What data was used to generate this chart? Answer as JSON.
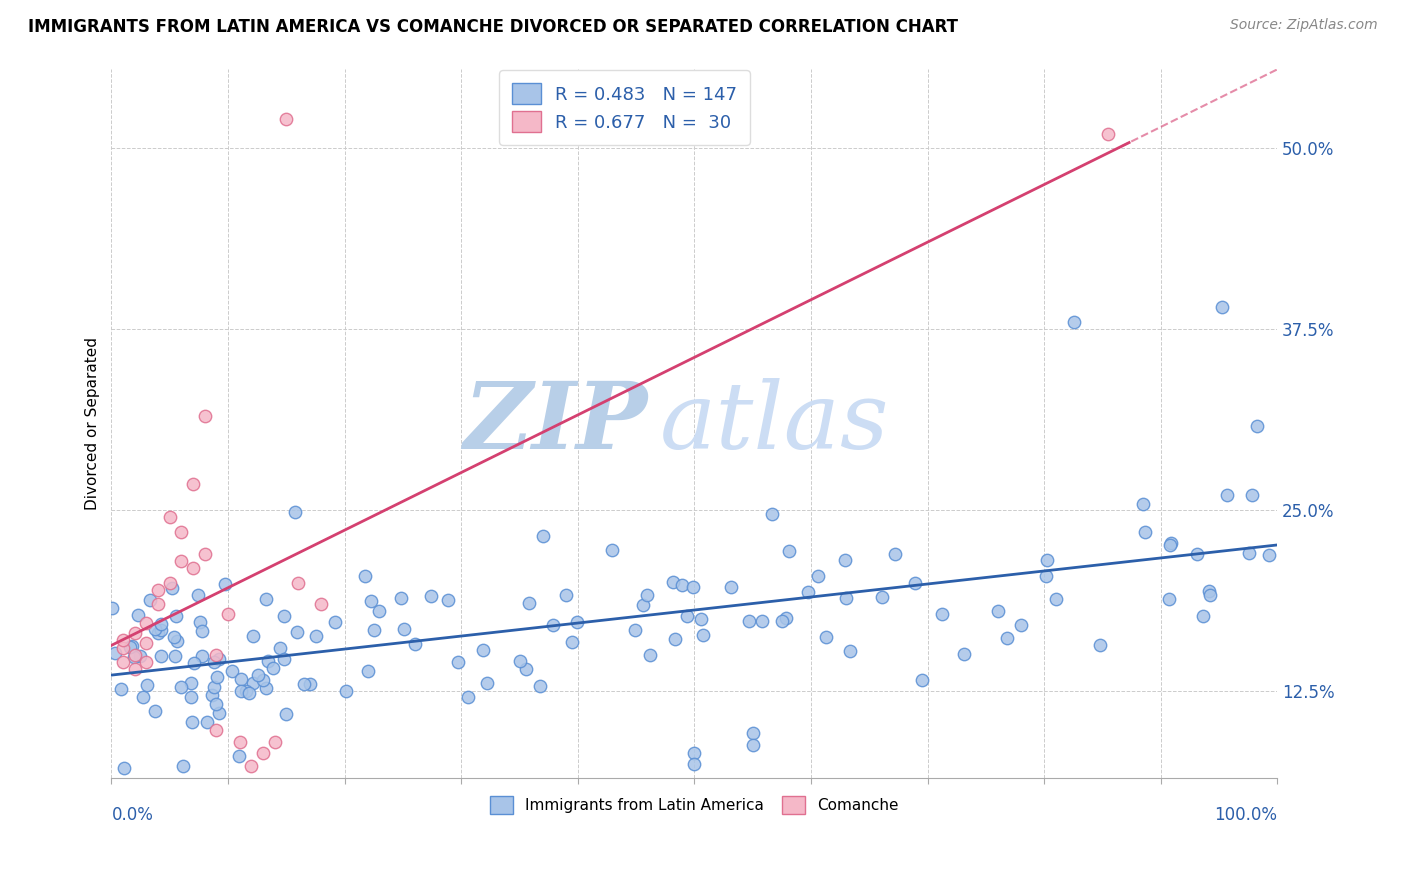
{
  "title": "IMMIGRANTS FROM LATIN AMERICA VS COMANCHE DIVORCED OR SEPARATED CORRELATION CHART",
  "source_text": "Source: ZipAtlas.com",
  "ylabel": "Divorced or Separated",
  "xmin": 0.0,
  "xmax": 1.0,
  "ymin": 0.065,
  "ymax": 0.555,
  "blue_R": 0.483,
  "blue_N": 147,
  "pink_R": 0.677,
  "pink_N": 30,
  "blue_marker_color": "#a8c4e8",
  "blue_marker_edge": "#5a8fd4",
  "pink_marker_color": "#f5b8c8",
  "pink_marker_edge": "#e07090",
  "blue_line_color": "#2c5faa",
  "pink_line_color": "#d44070",
  "watermark_zip": "#b8cfe8",
  "watermark_atlas": "#ccddf4",
  "legend_label_blue": "Immigrants from Latin America",
  "legend_label_pink": "Comanche",
  "ytick_vals": [
    0.125,
    0.25,
    0.375,
    0.5
  ],
  "ytick_labels": [
    "12.5%",
    "25.0%",
    "37.5%",
    "50.0%"
  ]
}
